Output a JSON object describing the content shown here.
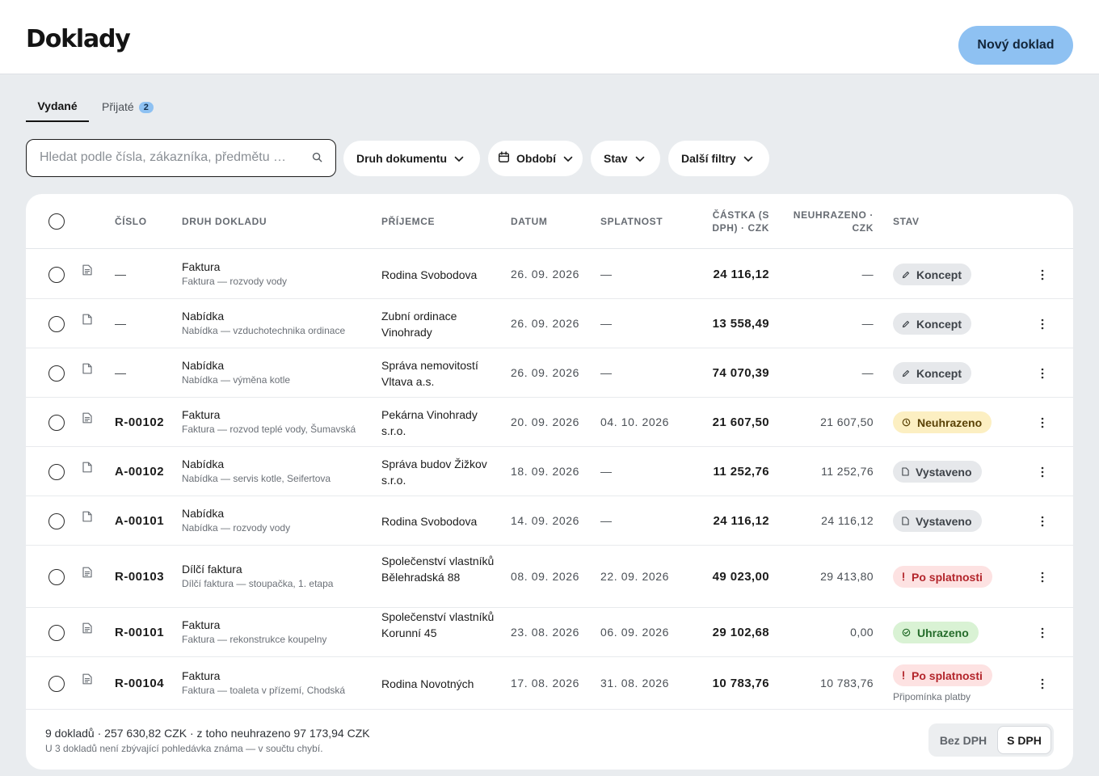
{
  "header": {
    "title": "Doklady",
    "new_button": "Nový doklad"
  },
  "tabs": [
    {
      "label": "Vydané",
      "active": true
    },
    {
      "label": "Přijaté",
      "count": "2"
    }
  ],
  "search": {
    "placeholder": "Hledat podle čísla, zákazníka, předmětu …",
    "value": ""
  },
  "filters": {
    "doc_type": "Druh dokumentu",
    "period": "Období",
    "status": "Stav",
    "more": "Další filtry"
  },
  "table": {
    "columns": {
      "number": "ČÍSLO",
      "type": "DRUH DOKLADU",
      "recipient": "PŘÍJEMCE",
      "date": "DATUM",
      "due": "SPLATNOST",
      "amount": "ČÁSTKA (S DPH) · CZK",
      "unpaid": "NEUHRAZENO · CZK",
      "status": "STAV"
    },
    "rows": [
      {
        "icon": "invoice-icon",
        "number": "—",
        "type": "Faktura",
        "subject": "Faktura — rozvody vody",
        "recipient": "Rodina Svobodova",
        "date": "26. 09. 2026",
        "due": "—",
        "amount": "24 116,12",
        "unpaid": "—",
        "status": "Koncept",
        "status_kind": "draft",
        "note": ""
      },
      {
        "icon": "document-icon",
        "number": "—",
        "type": "Nabídka",
        "subject": "Nabídka — vzduchotechnika ordinace",
        "recipient": "Zubní ordinace Vinohrady",
        "date": "26. 09. 2026",
        "due": "—",
        "amount": "13 558,49",
        "unpaid": "—",
        "status": "Koncept",
        "status_kind": "draft",
        "note": ""
      },
      {
        "icon": "document-icon",
        "number": "—",
        "type": "Nabídka",
        "subject": "Nabídka — výměna kotle",
        "recipient": "Správa nemovitostí Vltava a.s.",
        "date": "26. 09. 2026",
        "due": "—",
        "amount": "74 070,39",
        "unpaid": "—",
        "status": "Koncept",
        "status_kind": "draft",
        "note": ""
      },
      {
        "icon": "invoice-icon",
        "number": "R-00102",
        "type": "Faktura",
        "subject": "Faktura — rozvod teplé vody, Šumavská",
        "recipient": "Pekárna Vinohrady s.r.o.",
        "date": "20. 09. 2026",
        "due": "04. 10. 2026",
        "amount": "21 607,50",
        "unpaid": "21 607,50",
        "status": "Neuhrazeno",
        "status_kind": "unpaid",
        "note": ""
      },
      {
        "icon": "document-icon",
        "number": "A-00102",
        "type": "Nabídka",
        "subject": "Nabídka — servis kotle, Seifertova",
        "recipient": "Správa budov Žižkov s.r.o.",
        "date": "18. 09. 2026",
        "due": "—",
        "amount": "11 252,76",
        "unpaid": "11 252,76",
        "status": "Vystaveno",
        "status_kind": "issued",
        "note": ""
      },
      {
        "icon": "document-icon",
        "number": "A-00101",
        "type": "Nabídka",
        "subject": "Nabídka — rozvody vody",
        "recipient": "Rodina Svobodova",
        "date": "14. 09. 2026",
        "due": "—",
        "amount": "24 116,12",
        "unpaid": "24 116,12",
        "status": "Vystaveno",
        "status_kind": "issued",
        "note": ""
      },
      {
        "icon": "invoice-icon",
        "number": "R-00103",
        "type": "Dílčí faktura",
        "subject": "Dílčí faktura — stoupačka, 1. etapa",
        "recipient": "Společenství vlastníků Bělehradská 88",
        "date": "08. 09. 2026",
        "due": "22. 09. 2026",
        "amount": "49 023,00",
        "unpaid": "29 413,80",
        "status": "Po splatnosti",
        "status_kind": "overdue",
        "note": ""
      },
      {
        "icon": "invoice-icon",
        "number": "R-00101",
        "type": "Faktura",
        "subject": "Faktura — rekonstrukce koupelny",
        "recipient": "Společenství vlastníků Korunní 45",
        "date": "23. 08. 2026",
        "due": "06. 09. 2026",
        "amount": "29 102,68",
        "unpaid": "0,00",
        "status": "Uhrazeno",
        "status_kind": "paid",
        "note": ""
      },
      {
        "icon": "invoice-icon",
        "number": "R-00104",
        "type": "Faktura",
        "subject": "Faktura — toaleta v přízemí, Chodská",
        "recipient": "Rodina Novotných",
        "date": "17. 08. 2026",
        "due": "31. 08. 2026",
        "amount": "10 783,76",
        "unpaid": "10 783,76",
        "status": "Po splatnosti",
        "status_kind": "overdue",
        "note": "Připomínka platby"
      }
    ]
  },
  "footer": {
    "summary": "9 dokladů · 257 630,82 CZK · z toho neuhrazeno 97 173,94 CZK",
    "note": "U 3 dokladů není zbývající pohledávka známa — v součtu chybí.",
    "toggle_off": "Bez DPH",
    "toggle_on": "S DPH"
  },
  "colors": {
    "accent": "#8ec1f2",
    "draft": "#e6e8eb",
    "unpaid": "#fcefc2",
    "overdue": "#fde2e2",
    "paid": "#d9f2d4"
  }
}
